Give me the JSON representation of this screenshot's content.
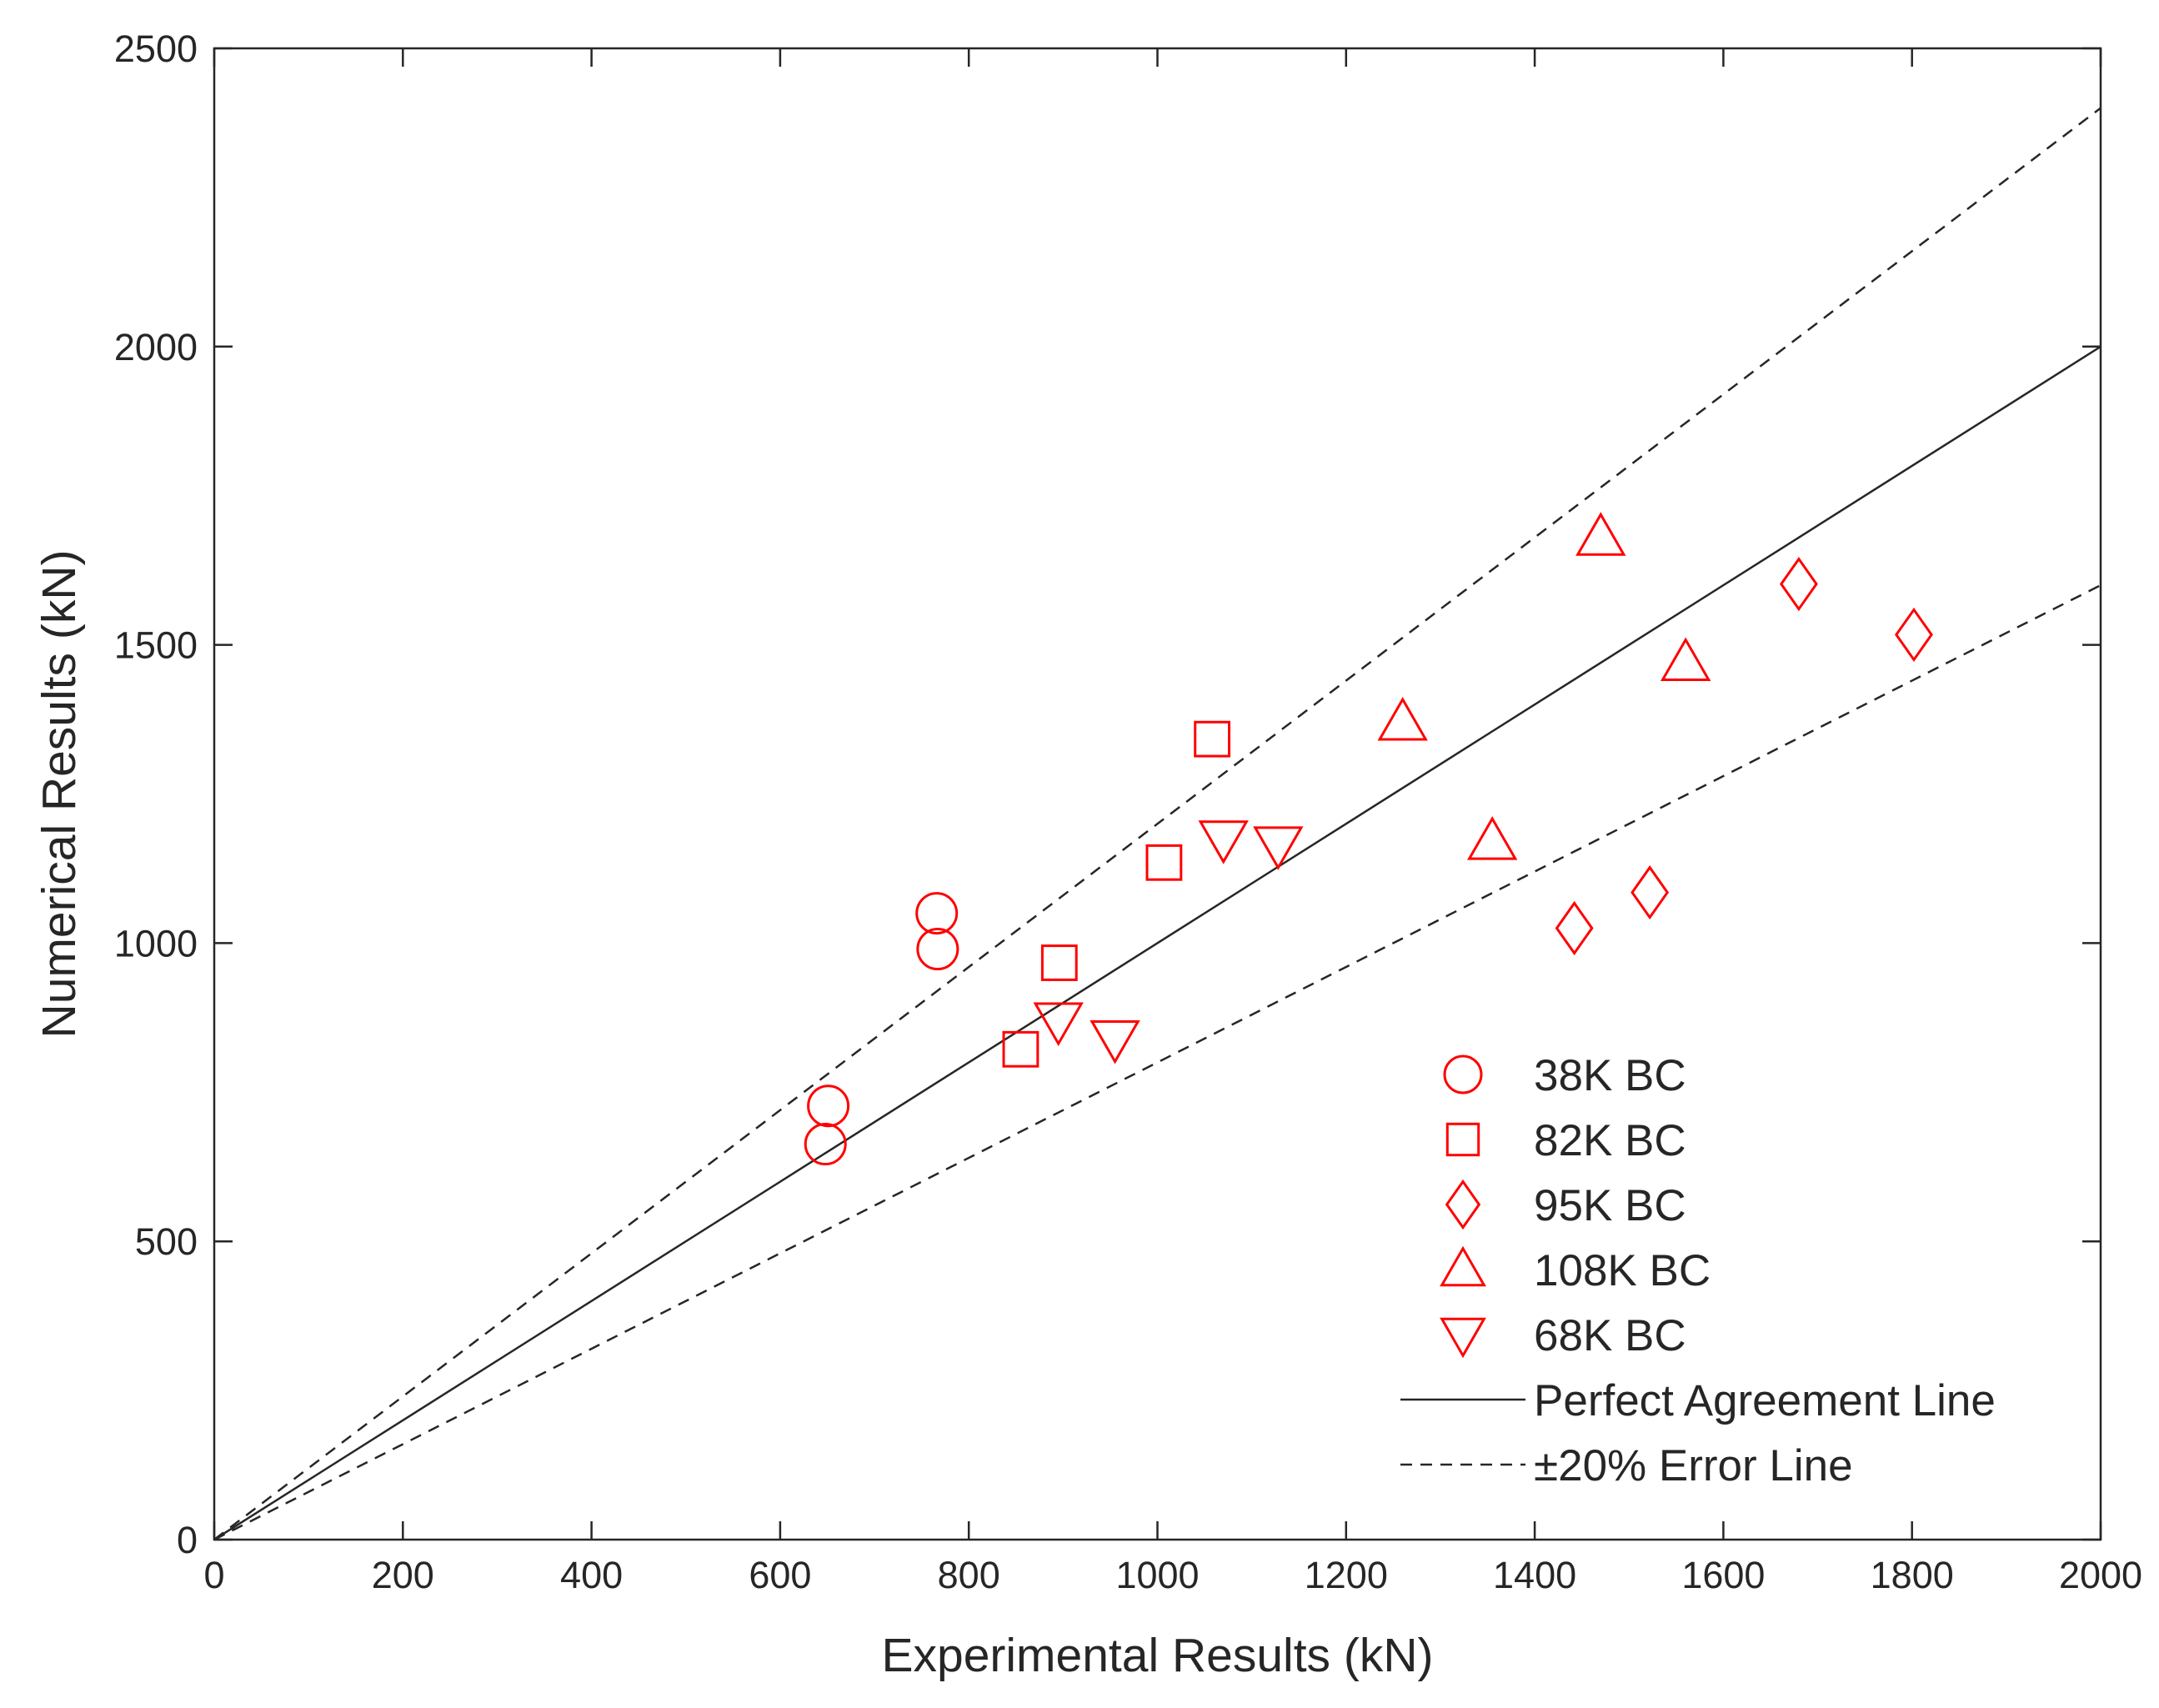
{
  "chart_data": {
    "type": "scatter",
    "xlabel": "Experimental Results (kN)",
    "ylabel": "Numerical Results (kN)",
    "xlim": [
      0,
      2000
    ],
    "ylim": [
      0,
      2500
    ],
    "xticks": [
      0,
      200,
      400,
      600,
      800,
      1000,
      1200,
      1400,
      1600,
      1800,
      2000
    ],
    "yticks": [
      0,
      500,
      1000,
      1500,
      2000,
      2500
    ],
    "grid": false,
    "legend_position": "bottom-right",
    "marker_color": "#ff0000",
    "series": [
      {
        "name": "38K BC",
        "marker": "circle",
        "points": [
          [
            648,
            663
          ],
          [
            651,
            727
          ],
          [
            767,
            990
          ],
          [
            766,
            1050
          ]
        ]
      },
      {
        "name": "82K BC",
        "marker": "square",
        "points": [
          [
            855,
            822
          ],
          [
            896,
            967
          ],
          [
            1007,
            1135
          ],
          [
            1058,
            1342
          ]
        ]
      },
      {
        "name": "95K BC",
        "marker": "diamond",
        "points": [
          [
            1442,
            1025
          ],
          [
            1522,
            1085
          ],
          [
            1680,
            1602
          ],
          [
            1802,
            1517
          ]
        ]
      },
      {
        "name": "108K BC",
        "marker": "triangle-up",
        "points": [
          [
            1260,
            1370
          ],
          [
            1355,
            1170
          ],
          [
            1470,
            1680
          ],
          [
            1560,
            1470
          ]
        ]
      },
      {
        "name": "68K BC",
        "marker": "triangle-down",
        "points": [
          [
            895,
            870
          ],
          [
            955,
            840
          ],
          [
            1070,
            1175
          ],
          [
            1128,
            1165
          ]
        ]
      }
    ],
    "reference_lines": [
      {
        "name": "Perfect Agreement Line",
        "style": "solid",
        "slope": 1.0
      },
      {
        "name": "±20% Error Line",
        "style": "dashed",
        "slopes": [
          1.2,
          0.8
        ]
      }
    ]
  }
}
